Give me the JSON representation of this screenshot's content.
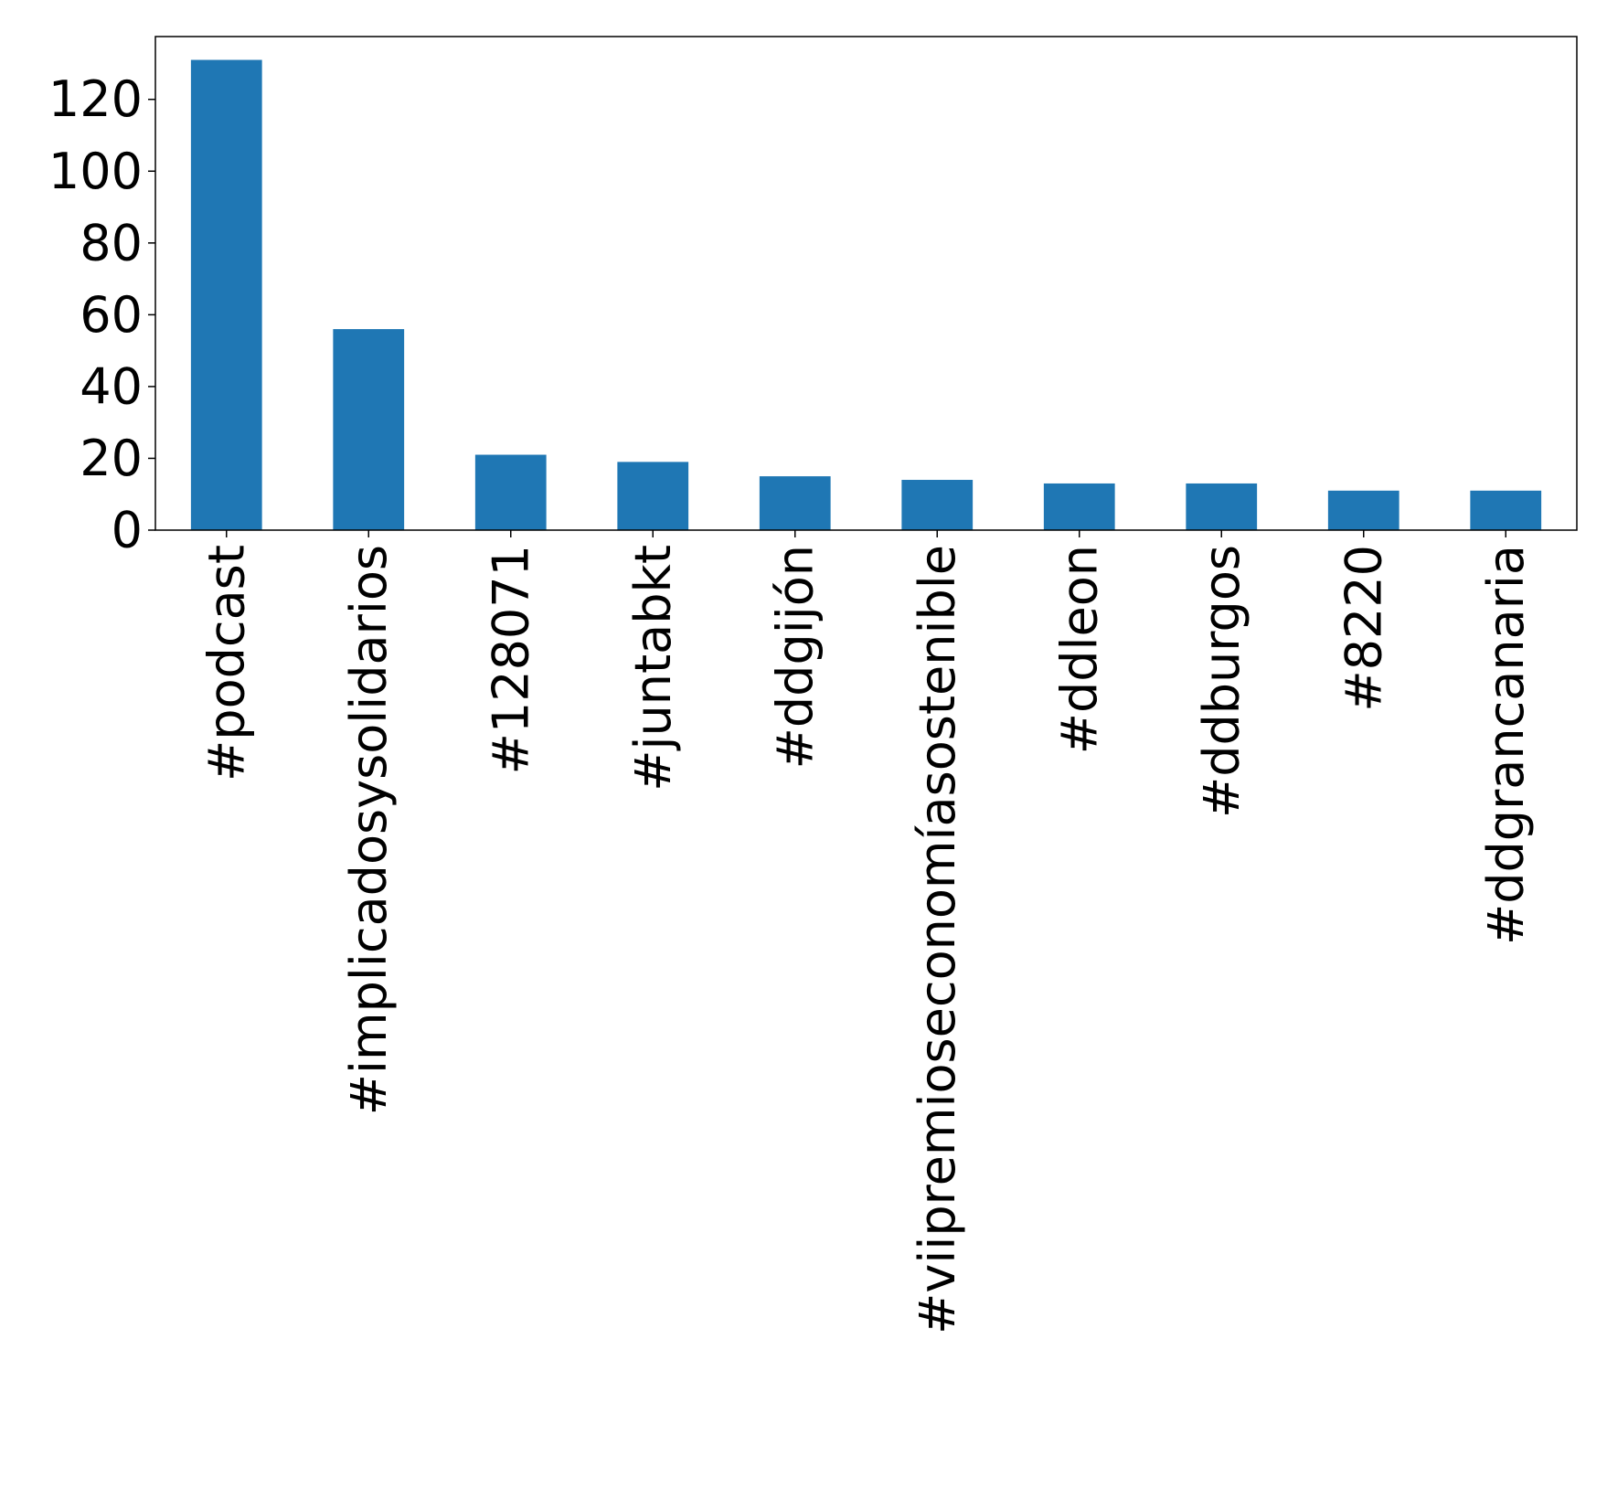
{
  "chart_data": {
    "type": "bar",
    "title": "",
    "xlabel": "",
    "ylabel": "",
    "categories": [
      "#podcast",
      "#implicadosysolidarios",
      "#128071",
      "#juntabkt",
      "#ddgijón",
      "#viipremioseconomíasostenible",
      "#ddleon",
      "#ddburgos",
      "#8220",
      "#ddgrancanaria"
    ],
    "values": [
      131,
      56,
      21,
      19,
      15,
      14,
      13,
      13,
      11,
      11
    ],
    "ylim": [
      0,
      137.5
    ],
    "yticks": [
      0,
      20,
      40,
      60,
      80,
      100,
      120
    ],
    "grid": false,
    "legend": "none",
    "colors": {
      "bar": "#1f77b4",
      "axis": "#000000",
      "background": "#ffffff"
    }
  }
}
